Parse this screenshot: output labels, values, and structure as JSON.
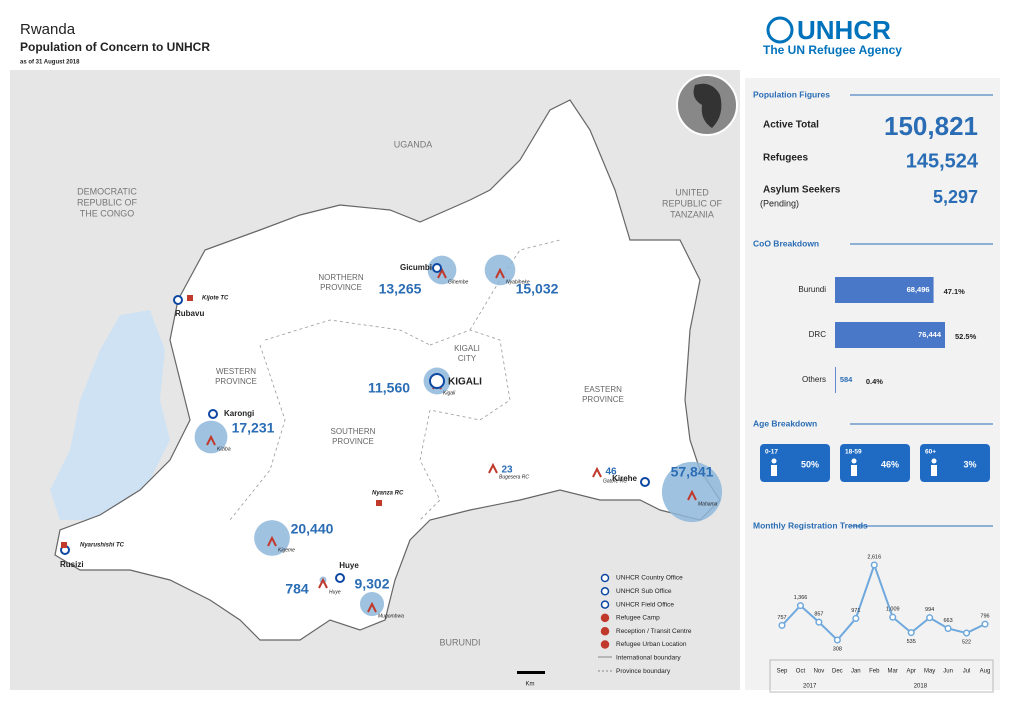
{
  "header": {
    "title": "Rwanda",
    "subtitle": "Population of Concern to UNHCR",
    "date": "as of 31 August 2018"
  },
  "logo": {
    "name": "UNHCR",
    "tagline": "The UN Refugee Agency"
  },
  "population": {
    "heading": "Population Figures",
    "rows": [
      {
        "label": "Active Total",
        "value": "150,821"
      },
      {
        "label": "Refugees",
        "value": "145,524"
      },
      {
        "label": "Asylum Seekers",
        "note": "(Pending)",
        "value": "5,297"
      }
    ]
  },
  "age": {
    "heading": "Age Breakdown",
    "groups": [
      {
        "label": "0-17",
        "value": "50%"
      },
      {
        "label": "18-59",
        "value": "46%"
      },
      {
        "label": "60+",
        "value": "3%"
      }
    ]
  },
  "chart_data": [
    {
      "type": "bar",
      "title": "CoO Breakdown",
      "categories": [
        "Burundi",
        "DRC",
        "Others"
      ],
      "values": [
        68496,
        76444,
        584
      ],
      "value_labels": [
        "68,496",
        "76,444",
        "584"
      ],
      "percent_labels": [
        "47.1%",
        "52.5%",
        "0.4%"
      ],
      "color": "#4a78c8"
    },
    {
      "type": "line",
      "title": "Monthly Registration Trends",
      "categories": [
        "Sep",
        "Oct",
        "Nov",
        "Dec",
        "Jan",
        "Feb",
        "Mar",
        "Apr",
        "May",
        "Jun",
        "Jul",
        "Aug"
      ],
      "groups": [
        {
          "label": "2017",
          "count": 4
        },
        {
          "label": "2018",
          "count": 8
        }
      ],
      "values": [
        757,
        1366,
        857,
        308,
        971,
        2616,
        1009,
        535,
        994,
        663,
        522,
        796
      ],
      "value_labels": [
        "757",
        "1,366",
        "857",
        "308",
        "971",
        "2,616",
        "1,009",
        "535",
        "994",
        "663",
        "522",
        "796"
      ],
      "color": "#6fa8dc"
    }
  ],
  "map": {
    "countries": [
      {
        "lines": [
          "UGANDA"
        ]
      },
      {
        "lines": [
          "DEMOCRATIC",
          "REPUBLIC OF",
          "THE CONGO"
        ]
      },
      {
        "lines": [
          "UNITED",
          "REPUBLIC OF",
          "TANZANIA"
        ]
      },
      {
        "lines": [
          "BURUNDI"
        ]
      }
    ],
    "provinces": [
      {
        "lines": [
          "NORTHERN",
          "PROVINCE"
        ]
      },
      {
        "lines": [
          "WESTERN",
          "PROVINCE"
        ]
      },
      {
        "lines": [
          "SOUTHERN",
          "PROVINCE"
        ]
      },
      {
        "lines": [
          "KIGALI",
          "CITY"
        ]
      },
      {
        "lines": [
          "EASTERN",
          "PROVINCE"
        ]
      }
    ],
    "offices": [
      "Gicumbi",
      "Rubavu",
      "KIGALI",
      "Karongi",
      "Kirehe",
      "Huye",
      "Rusizi"
    ],
    "sites": [
      {
        "name": "Gihembe",
        "value": 13265,
        "label": "13,265"
      },
      {
        "name": "Nyabiheke",
        "value": 15032,
        "label": "15,032"
      },
      {
        "name": "Kigali",
        "value": 11560,
        "label": "11,560"
      },
      {
        "name": "Kiziba",
        "value": 17231,
        "label": "17,231"
      },
      {
        "name": "Kigeme",
        "value": 20440,
        "label": "20,440"
      },
      {
        "name": "Mugombwa",
        "value": 9302,
        "label": "9,302"
      },
      {
        "name": "Huye",
        "value": 784,
        "label": "784"
      },
      {
        "name": "Bugesera RC",
        "value": 23,
        "label": "23"
      },
      {
        "name": "Gatore RC",
        "value": 46,
        "label": "46"
      },
      {
        "name": "Mahama",
        "value": 57841,
        "label": "57,841"
      }
    ],
    "transit": [
      "Kijote TC",
      "Nyarushishi TC",
      "Nyanza RC"
    ],
    "legend": [
      "UNHCR Country Office",
      "UNHCR Sub Office",
      "UNHCR Field Office",
      "Refugee Camp",
      "Reception / Transit Centre",
      "Refugee Urban Location",
      "International boundary",
      "Province boundary"
    ],
    "scale": "Km"
  }
}
